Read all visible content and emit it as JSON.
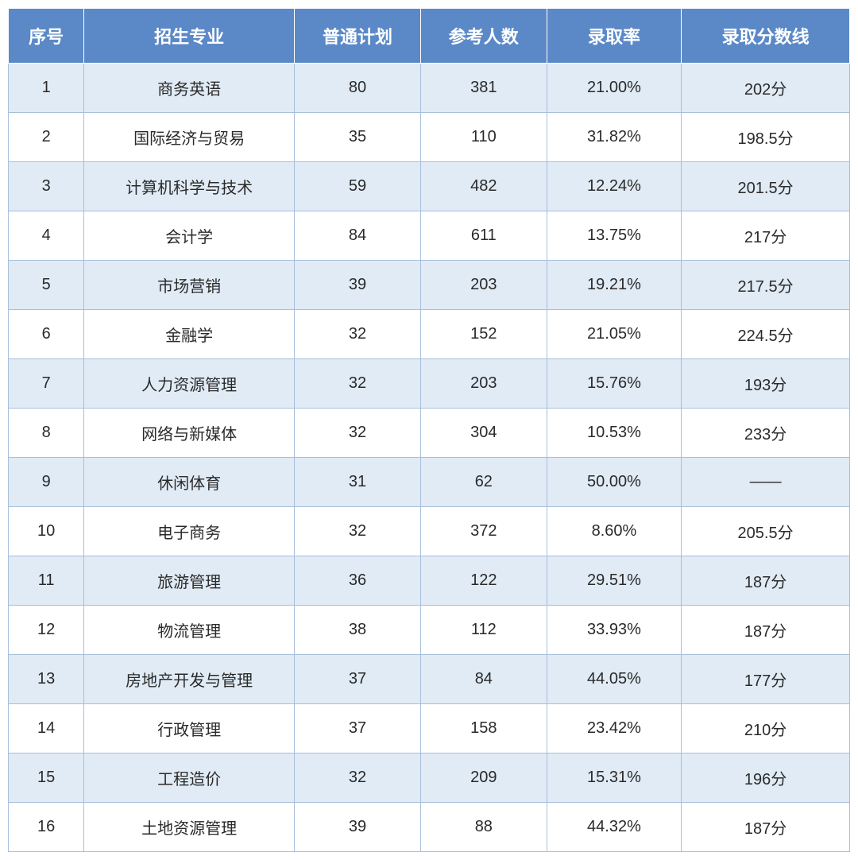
{
  "table": {
    "columns": [
      "序号",
      "招生专业",
      "普通计划",
      "参考人数",
      "录取率",
      "录取分数线"
    ],
    "header_bg": "#5b89c7",
    "header_fg": "#ffffff",
    "odd_row_bg": "#e0ebf5",
    "even_row_bg": "#ffffff",
    "border_color": "#a8bfdb",
    "header_fontsize": 22,
    "cell_fontsize": 20,
    "col_widths_pct": [
      9,
      25,
      15,
      15,
      16,
      20
    ],
    "rows": [
      [
        "1",
        "商务英语",
        "80",
        "381",
        "21.00%",
        "202分"
      ],
      [
        "2",
        "国际经济与贸易",
        "35",
        "110",
        "31.82%",
        "198.5分"
      ],
      [
        "3",
        "计算机科学与技术",
        "59",
        "482",
        "12.24%",
        "201.5分"
      ],
      [
        "4",
        "会计学",
        "84",
        "611",
        "13.75%",
        "217分"
      ],
      [
        "5",
        "市场营销",
        "39",
        "203",
        "19.21%",
        "217.5分"
      ],
      [
        "6",
        "金融学",
        "32",
        "152",
        "21.05%",
        "224.5分"
      ],
      [
        "7",
        "人力资源管理",
        "32",
        "203",
        "15.76%",
        "193分"
      ],
      [
        "8",
        "网络与新媒体",
        "32",
        "304",
        "10.53%",
        "233分"
      ],
      [
        "9",
        "休闲体育",
        "31",
        "62",
        "50.00%",
        "——"
      ],
      [
        "10",
        "电子商务",
        "32",
        "372",
        "8.60%",
        "205.5分"
      ],
      [
        "11",
        "旅游管理",
        "36",
        "122",
        "29.51%",
        "187分"
      ],
      [
        "12",
        "物流管理",
        "38",
        "112",
        "33.93%",
        "187分"
      ],
      [
        "13",
        "房地产开发与管理",
        "37",
        "84",
        "44.05%",
        "177分"
      ],
      [
        "14",
        "行政管理",
        "37",
        "158",
        "23.42%",
        "210分"
      ],
      [
        "15",
        "工程造价",
        "32",
        "209",
        "15.31%",
        "196分"
      ],
      [
        "16",
        "土地资源管理",
        "39",
        "88",
        "44.32%",
        "187分"
      ]
    ]
  }
}
